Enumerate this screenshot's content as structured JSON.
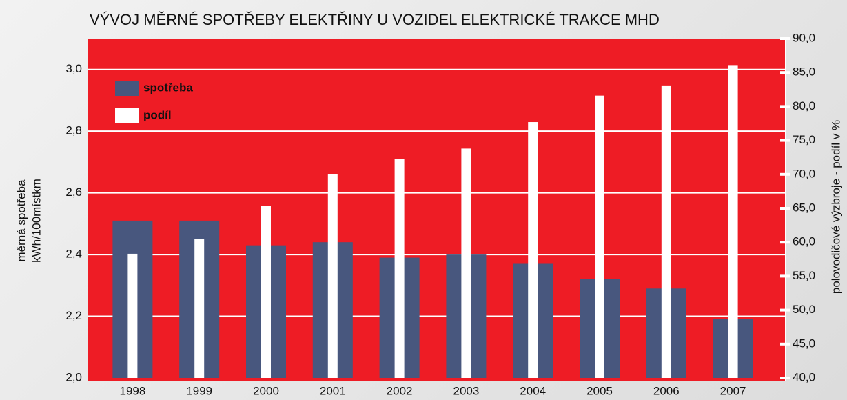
{
  "chart_data": {
    "type": "bar",
    "title": "VÝVOJ MĚRNÉ SPOTŘEBY ELEKTŘINY U VOZIDEL ELEKTRICKÉ TRAKCE MHD",
    "ylabel": [
      "měrná spotřeba",
      "kWh/100místkm"
    ],
    "y2label": "polovodičové výzbroje - podíl  v %",
    "categories": [
      "1998",
      "1999",
      "2000",
      "2001",
      "2002",
      "2003",
      "2004",
      "2005",
      "2006",
      "2007"
    ],
    "series": [
      {
        "name": "spotřeba",
        "color": "#48577e",
        "values": [
          2.51,
          2.51,
          2.43,
          2.44,
          2.39,
          2.4,
          2.37,
          2.32,
          2.29,
          2.19
        ]
      },
      {
        "name": "podíl",
        "color": "#ffffff",
        "axis": "y2",
        "values": [
          58.3,
          60.5,
          65.4,
          70.0,
          72.3,
          73.8,
          77.7,
          81.6,
          83.1,
          86.1
        ]
      }
    ],
    "ylim": [
      2.0,
      3.1
    ],
    "yticks": [
      {
        "value": 2.0,
        "label": "2,0"
      },
      {
        "value": 2.2,
        "label": "2,2"
      },
      {
        "value": 2.4,
        "label": "2,4"
      },
      {
        "value": 2.6,
        "label": "2,6"
      },
      {
        "value": 2.8,
        "label": "2,8"
      },
      {
        "value": 3.0,
        "label": "3,0"
      }
    ],
    "y2lim": [
      40,
      90
    ],
    "y2ticks": [
      {
        "value": 40,
        "label": "40,0"
      },
      {
        "value": 45,
        "label": "45,0"
      },
      {
        "value": 50,
        "label": "50,0"
      },
      {
        "value": 55,
        "label": "55,0"
      },
      {
        "value": 60,
        "label": "60,0"
      },
      {
        "value": 65,
        "label": "65,0"
      },
      {
        "value": 70,
        "label": "70,0"
      },
      {
        "value": 75,
        "label": "75,0"
      },
      {
        "value": 80,
        "label": "80,0"
      },
      {
        "value": 85,
        "label": "85,0"
      },
      {
        "value": 90,
        "label": "90,0"
      }
    ],
    "grid": true,
    "legend": "upper left",
    "background": "#ee1c25"
  }
}
